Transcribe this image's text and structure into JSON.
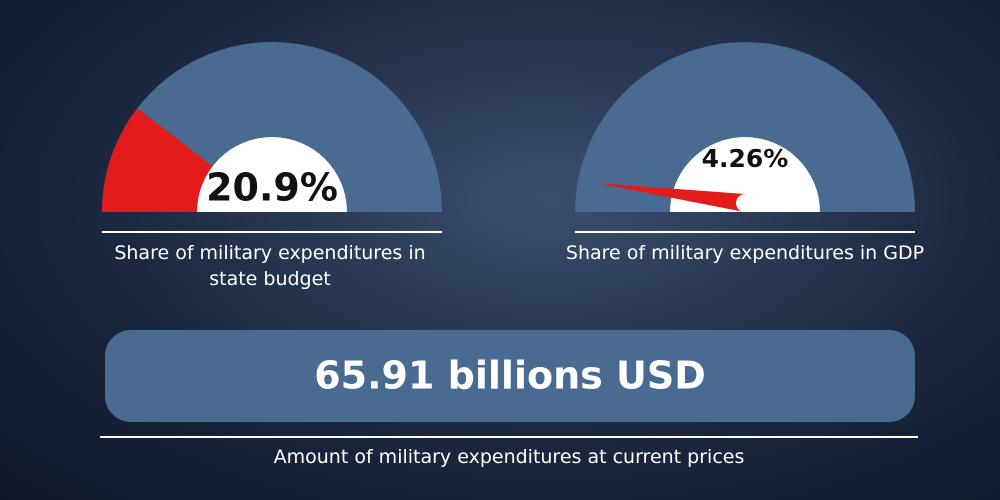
{
  "chart_data": [
    {
      "type": "gauge",
      "values": [
        20.9
      ],
      "value_labels": [
        "20.9%"
      ],
      "ylim": [
        0,
        100
      ],
      "color": "#e31b1b",
      "track_color": "#4a6b91",
      "caption": "Share of military expenditures in state budget"
    },
    {
      "type": "needle",
      "values": [
        4.26
      ],
      "value_labels": [
        "4.26%"
      ],
      "ylim": [
        0,
        100
      ],
      "color": "#e31b1b",
      "track_color": "#4a6b91",
      "caption": "Share of military expenditures in GDP"
    }
  ],
  "headline": {
    "text": "65.91 billions USD",
    "caption": "Amount of military expenditures at current prices"
  }
}
